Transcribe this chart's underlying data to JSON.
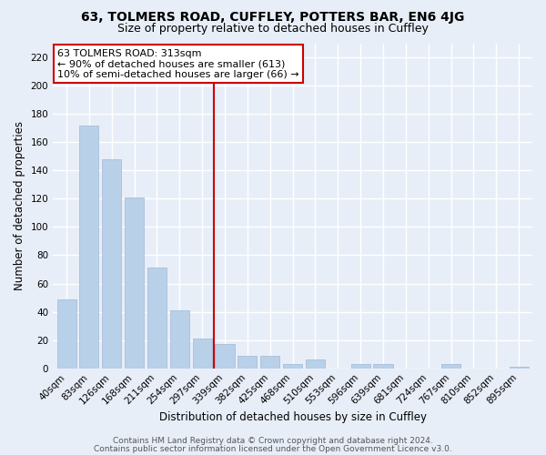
{
  "title": "63, TOLMERS ROAD, CUFFLEY, POTTERS BAR, EN6 4JG",
  "subtitle": "Size of property relative to detached houses in Cuffley",
  "xlabel": "Distribution of detached houses by size in Cuffley",
  "ylabel": "Number of detached properties",
  "bar_labels": [
    "40sqm",
    "83sqm",
    "126sqm",
    "168sqm",
    "211sqm",
    "254sqm",
    "297sqm",
    "339sqm",
    "382sqm",
    "425sqm",
    "468sqm",
    "510sqm",
    "553sqm",
    "596sqm",
    "639sqm",
    "681sqm",
    "724sqm",
    "767sqm",
    "810sqm",
    "852sqm",
    "895sqm"
  ],
  "bar_values": [
    49,
    172,
    148,
    121,
    71,
    41,
    21,
    17,
    9,
    9,
    3,
    6,
    0,
    3,
    3,
    0,
    0,
    3,
    0,
    0,
    1
  ],
  "bar_color": "#b8d0e8",
  "bar_edge_color": "#a0b8d8",
  "vline_x": 6.5,
  "vline_color": "#cc0000",
  "annotation_lines": [
    "63 TOLMERS ROAD: 313sqm",
    "← 90% of detached houses are smaller (613)",
    "10% of semi-detached houses are larger (66) →"
  ],
  "annotation_box_color": "#ffffff",
  "annotation_box_edgecolor": "#cc0000",
  "ylim": [
    0,
    230
  ],
  "yticks": [
    0,
    20,
    40,
    60,
    80,
    100,
    120,
    140,
    160,
    180,
    200,
    220
  ],
  "footer_line1": "Contains HM Land Registry data © Crown copyright and database right 2024.",
  "footer_line2": "Contains public sector information licensed under the Open Government Licence v3.0.",
  "bg_color": "#e8eef8",
  "grid_color": "#ffffff",
  "title_fontsize": 10,
  "subtitle_fontsize": 9,
  "axis_label_fontsize": 8.5,
  "tick_fontsize": 7.5,
  "annotation_fontsize": 8,
  "footer_fontsize": 6.5
}
